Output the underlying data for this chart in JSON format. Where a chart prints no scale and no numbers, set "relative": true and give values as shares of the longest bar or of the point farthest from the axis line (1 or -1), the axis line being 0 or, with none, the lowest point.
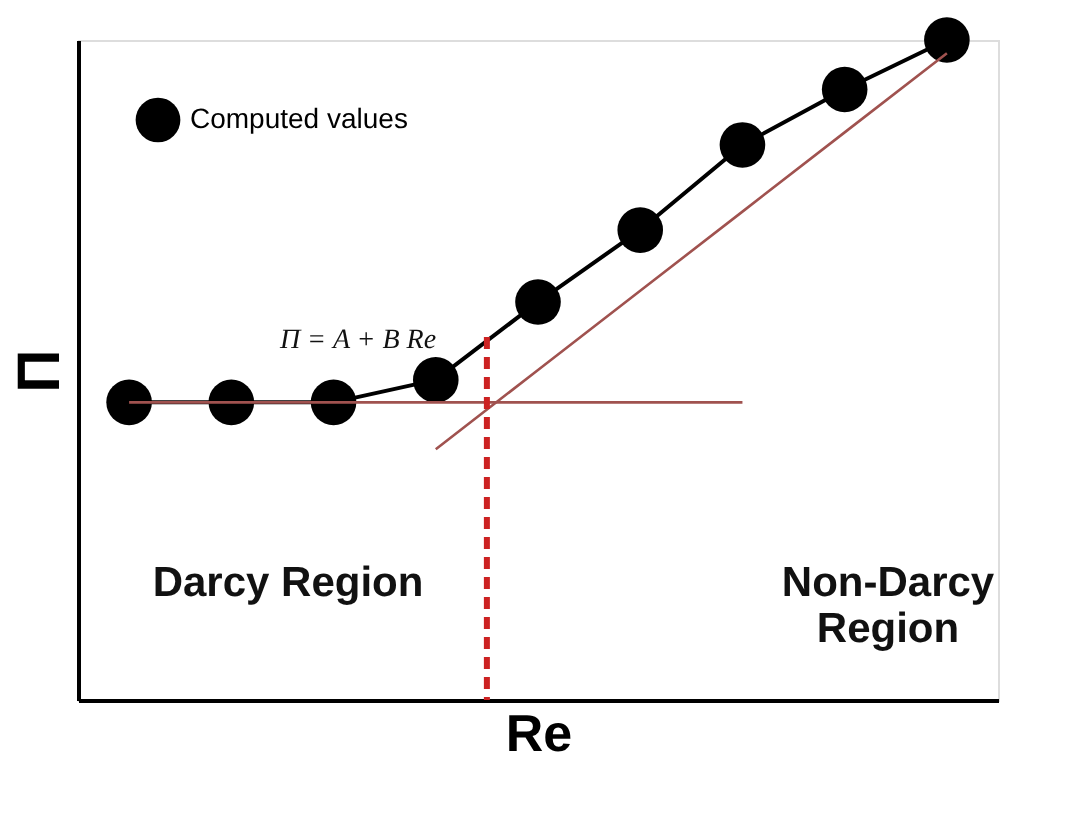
{
  "chart_data": {
    "type": "line",
    "xlabel": "Re",
    "ylabel": "Π",
    "relative": true,
    "marker": "circle",
    "legend": "top left",
    "categories": [
      null,
      null,
      null,
      null,
      null,
      null,
      null,
      null,
      null
    ],
    "series": [
      {
        "name": "Computed values",
        "color": "#000000",
        "values": [
          0.451,
          0.451,
          0.451,
          0.485,
          0.603,
          0.712,
          0.841,
          0.925,
          1.0
        ]
      },
      {
        "type": "line",
        "color": "#a0524f",
        "marker": "none",
        "values": [
          0.451,
          0.451,
          0.451,
          0.451,
          0.451,
          0.451,
          0.451,
          null,
          null
        ]
      },
      {
        "type": "line",
        "color": "#a0524f",
        "marker": "none",
        "values": [
          null,
          null,
          null,
          0.38,
          0.5,
          0.62,
          0.74,
          0.86,
          0.98
        ]
      }
    ],
    "annotations": [
      "Π = A + B Re",
      "Darcy Region",
      "Non-Darcy Region"
    ]
  }
}
